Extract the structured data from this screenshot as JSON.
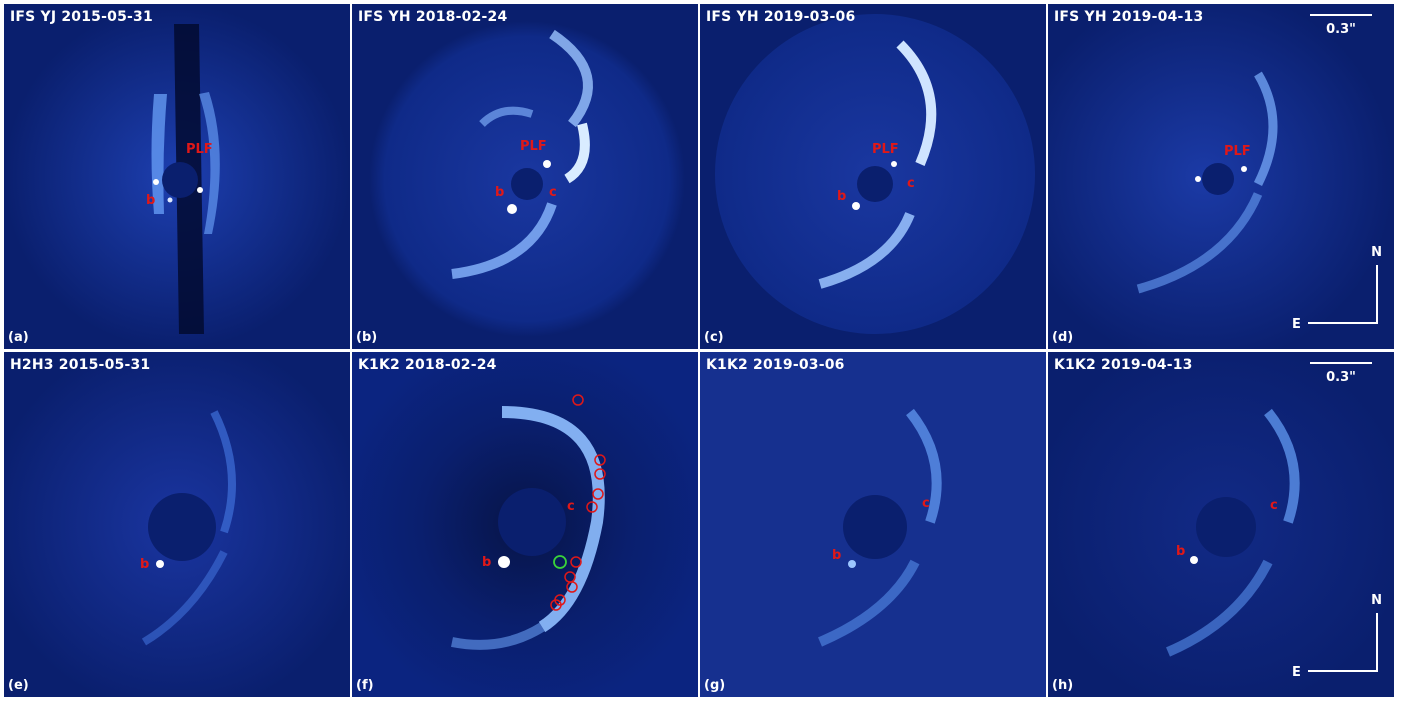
{
  "figure": {
    "panels": [
      {
        "id": "a",
        "title": "IFS YJ 2015-05-31",
        "letter": "(a)",
        "labels": [
          "PLF",
          "b"
        ]
      },
      {
        "id": "b",
        "title": "IFS YH 2018-02-24",
        "letter": "(b)",
        "labels": [
          "PLF",
          "b",
          "c"
        ]
      },
      {
        "id": "c",
        "title": "IFS YH 2019-03-06",
        "letter": "(c)",
        "labels": [
          "PLF",
          "b",
          "c"
        ]
      },
      {
        "id": "d",
        "title": "IFS YH 2019-04-13",
        "letter": "(d)",
        "labels": [
          "PLF"
        ]
      },
      {
        "id": "e",
        "title": "H2H3 2015-05-31",
        "letter": "(e)",
        "labels": [
          "b"
        ]
      },
      {
        "id": "f",
        "title": "K1K2 2018-02-24",
        "letter": "(f)",
        "labels": [
          "b",
          "c"
        ]
      },
      {
        "id": "g",
        "title": "K1K2 2019-03-06",
        "letter": "(g)",
        "labels": [
          "b",
          "c"
        ]
      },
      {
        "id": "h",
        "title": "K1K2 2019-04-13",
        "letter": "(h)",
        "labels": [
          "b",
          "c"
        ]
      }
    ],
    "scale_bar": "0.3\"",
    "compass": {
      "north": "N",
      "east": "E"
    },
    "colors": {
      "background": "#0a1f6e",
      "label": "#e01818",
      "marker_red": "#e01818",
      "marker_green": "#39d23a"
    }
  }
}
